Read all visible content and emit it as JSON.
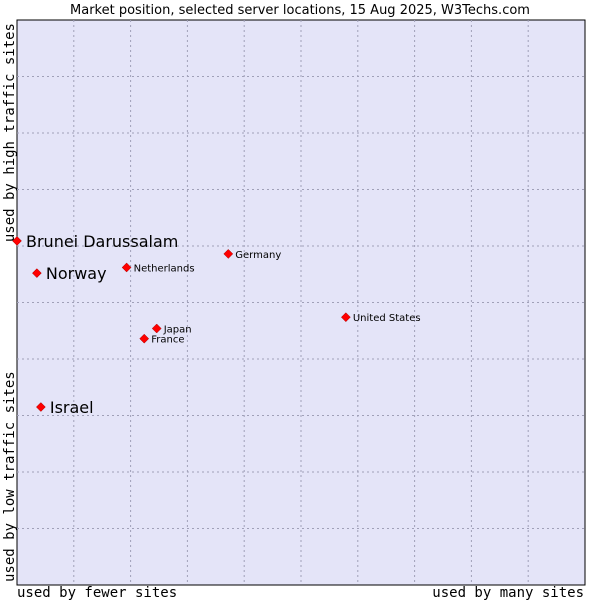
{
  "chart_data": {
    "type": "scatter",
    "title": "Market position, selected server locations, 15 Aug 2025, W3Techs.com",
    "xlabel_left": "used by fewer sites",
    "xlabel_right": "used by many sites",
    "ylabel_top": "used by high traffic sites",
    "ylabel_bottom": "used by low traffic sites",
    "xlim": [
      0,
      10
    ],
    "ylim": [
      0,
      10
    ],
    "grid": true,
    "point_color": "#ff0000",
    "plot_background": "#e4e4f8",
    "points": [
      {
        "label": "Brunei Darussalam",
        "x": 0.0,
        "y": 6.09,
        "emphasis": "large"
      },
      {
        "label": "Norway",
        "x": 0.35,
        "y": 5.52,
        "emphasis": "large"
      },
      {
        "label": "Israel",
        "x": 0.42,
        "y": 3.15,
        "emphasis": "large"
      },
      {
        "label": "Netherlands",
        "x": 1.93,
        "y": 5.62,
        "emphasis": "small"
      },
      {
        "label": "Germany",
        "x": 3.72,
        "y": 5.86,
        "emphasis": "small"
      },
      {
        "label": "United States",
        "x": 5.79,
        "y": 4.74,
        "emphasis": "small"
      },
      {
        "label": "Japan",
        "x": 2.46,
        "y": 4.54,
        "emphasis": "small"
      },
      {
        "label": "France",
        "x": 2.24,
        "y": 4.36,
        "emphasis": "small"
      }
    ]
  }
}
